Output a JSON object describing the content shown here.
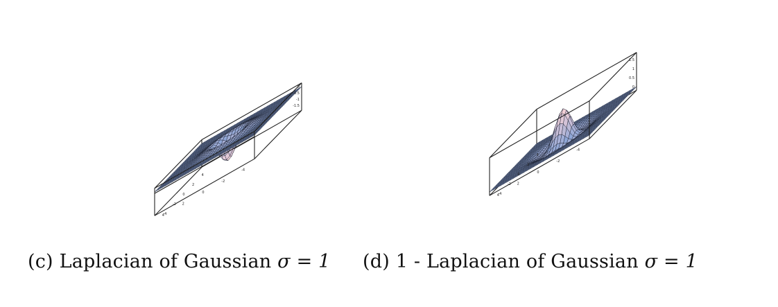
{
  "figures": [
    {
      "id": "c",
      "caption_prefix": "(c) Laplacian of Gaussian ",
      "caption_sigma": "σ = 1",
      "surface": "negative_laplacian_of_gaussian",
      "sigma": 1,
      "z_ticks": [
        "0",
        "-0.5",
        "-1",
        "-1.5"
      ],
      "x_ticks": [
        "-4",
        "-2",
        "0",
        "2",
        "4"
      ],
      "y_ticks": [
        "-4",
        "-2",
        "0",
        "2",
        "4"
      ],
      "colors": {
        "mesh_base": "#8fa6d6",
        "mesh_peak": "#f3d0d7",
        "grid_line": "#1c2233",
        "box": "#222222"
      }
    },
    {
      "id": "d",
      "caption_prefix": "(d) 1 - Laplacian of Gaussian ",
      "caption_sigma": "σ = 1",
      "surface": "one_minus_laplacian_of_gaussian",
      "sigma": 1,
      "z_ticks": [
        "1.5",
        "1",
        "0.5",
        "0"
      ],
      "x_ticks": [
        "-4",
        "-2",
        "0",
        "2",
        "4"
      ],
      "y_ticks": [
        "-4",
        "-2",
        "0",
        "2",
        "4"
      ],
      "colors": {
        "mesh_base": "#8fa6d6",
        "mesh_peak": "#f3d0d7",
        "grid_line": "#1c2233",
        "box": "#222222"
      }
    }
  ]
}
